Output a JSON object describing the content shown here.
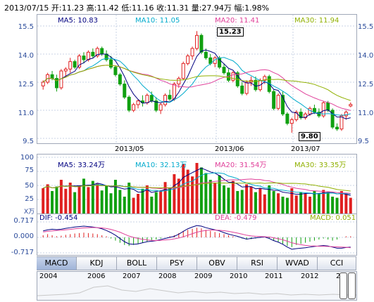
{
  "header": {
    "date": "2013/07/15",
    "open": "开:11.23",
    "high": "高:11.42",
    "low": "低:11.16",
    "close": "收:11.31",
    "volume": "量:27.94万",
    "change": "幅:1.98%"
  },
  "price_panel": {
    "ma5": "MA5: 10.83",
    "ma10": "MA10: 11.05",
    "ma20": "MA20: 11.41",
    "ma30": "MA30: 11.94",
    "y_ticks": [
      "15.5",
      "14.0",
      "12.5",
      "11.0",
      "9.5"
    ],
    "x_ticks": [
      "2013/05",
      "2013/06",
      "2013/07"
    ],
    "high_label": "15.23",
    "low_label": "9.80",
    "colors": {
      "ma5": "#000080",
      "ma10": "#00aacc",
      "ma20": "#e0409a",
      "ma30": "#90b000",
      "up": "#e02020",
      "down": "#10a010"
    }
  },
  "volume_panel": {
    "ma5": "MA5: 33.24万",
    "ma10": "MA10: 32.13万",
    "ma20": "MA20: 31.54万",
    "ma30": "MA30: 33.35万",
    "y_ticks": [
      "100",
      "75",
      "50",
      "25"
    ],
    "unit": "X万"
  },
  "macd_panel": {
    "dif": "DIF: -0.454",
    "dea": "DEA: -0.479",
    "macd": "MACD: 0.051",
    "y_ticks": [
      "0.717",
      "0.000",
      "-0.717"
    ]
  },
  "tabs": [
    "MACD",
    "KDJ",
    "BOLL",
    "PSY",
    "OBV",
    "RSI",
    "WVAD",
    "CCI"
  ],
  "active_tab": "MACD",
  "timeline_years": [
    "2004",
    "2006",
    "2007",
    "2008",
    "2009",
    "2010",
    "2011",
    "2012",
    "2"
  ],
  "chart_data": {
    "type": "candlestick",
    "y_range": [
      9.5,
      15.5
    ],
    "candles": [
      [
        12.3,
        12.6,
        12.1,
        12.5
      ],
      [
        12.5,
        13.0,
        12.4,
        12.9
      ],
      [
        12.9,
        13.1,
        12.6,
        12.7
      ],
      [
        12.7,
        12.9,
        12.0,
        12.2
      ],
      [
        12.2,
        13.2,
        12.1,
        13.1
      ],
      [
        13.1,
        13.3,
        12.8,
        13.2
      ],
      [
        13.2,
        13.8,
        13.0,
        13.6
      ],
      [
        13.6,
        13.7,
        13.2,
        13.3
      ],
      [
        13.3,
        14.0,
        13.2,
        13.9
      ],
      [
        13.9,
        14.1,
        13.5,
        13.7
      ],
      [
        13.7,
        14.2,
        13.6,
        14.1
      ],
      [
        14.1,
        14.3,
        13.8,
        13.9
      ],
      [
        13.9,
        14.4,
        13.8,
        14.3
      ],
      [
        14.3,
        14.4,
        13.9,
        14.0
      ],
      [
        14.0,
        14.2,
        13.6,
        13.7
      ],
      [
        13.7,
        13.9,
        13.2,
        13.3
      ],
      [
        13.3,
        13.4,
        12.8,
        12.9
      ],
      [
        12.9,
        13.0,
        12.3,
        12.4
      ],
      [
        12.4,
        12.6,
        11.6,
        11.7
      ],
      [
        11.7,
        11.8,
        10.9,
        11.0
      ],
      [
        11.0,
        11.4,
        10.9,
        11.3
      ],
      [
        11.3,
        11.6,
        11.1,
        11.5
      ],
      [
        11.5,
        11.8,
        11.2,
        11.4
      ],
      [
        11.4,
        11.9,
        11.3,
        11.8
      ],
      [
        11.8,
        12.0,
        11.4,
        11.5
      ],
      [
        11.5,
        11.7,
        10.9,
        11.0
      ],
      [
        11.0,
        11.4,
        10.8,
        11.3
      ],
      [
        11.3,
        11.9,
        11.2,
        11.8
      ],
      [
        11.8,
        12.1,
        11.5,
        11.6
      ],
      [
        11.6,
        12.5,
        11.5,
        12.4
      ],
      [
        12.4,
        12.8,
        12.2,
        12.7
      ],
      [
        12.7,
        13.6,
        12.6,
        13.5
      ],
      [
        13.5,
        14.0,
        13.4,
        13.9
      ],
      [
        13.9,
        14.4,
        13.7,
        14.3
      ],
      [
        14.3,
        15.23,
        14.2,
        15.0
      ],
      [
        15.0,
        15.1,
        14.0,
        14.1
      ],
      [
        14.1,
        14.3,
        13.7,
        13.8
      ],
      [
        13.8,
        14.0,
        13.4,
        13.5
      ],
      [
        13.5,
        13.9,
        13.3,
        13.8
      ],
      [
        13.8,
        13.9,
        13.2,
        13.3
      ],
      [
        13.3,
        13.5,
        12.9,
        13.0
      ],
      [
        13.0,
        13.2,
        12.5,
        12.6
      ],
      [
        12.6,
        13.1,
        12.5,
        13.0
      ],
      [
        13.0,
        13.1,
        12.2,
        12.3
      ],
      [
        12.3,
        12.5,
        11.8,
        11.9
      ],
      [
        11.9,
        12.6,
        11.8,
        12.5
      ],
      [
        12.5,
        12.8,
        12.3,
        12.6
      ],
      [
        12.6,
        12.8,
        12.0,
        12.1
      ],
      [
        12.1,
        12.7,
        12.0,
        12.6
      ],
      [
        12.6,
        12.9,
        12.4,
        12.8
      ],
      [
        12.8,
        12.9,
        11.9,
        12.0
      ],
      [
        12.0,
        12.1,
        11.0,
        11.1
      ],
      [
        11.1,
        11.9,
        11.0,
        11.8
      ],
      [
        11.8,
        12.0,
        10.7,
        10.8
      ],
      [
        10.8,
        10.9,
        10.2,
        10.3
      ],
      [
        10.3,
        10.6,
        9.8,
        10.5
      ],
      [
        10.5,
        11.0,
        10.4,
        10.9
      ],
      [
        10.9,
        11.1,
        10.5,
        10.6
      ],
      [
        10.6,
        10.9,
        10.5,
        10.8
      ],
      [
        10.8,
        11.2,
        10.7,
        11.1
      ],
      [
        11.1,
        11.3,
        10.8,
        10.9
      ],
      [
        10.9,
        11.1,
        10.6,
        10.7
      ],
      [
        10.7,
        11.5,
        10.6,
        11.4
      ],
      [
        11.4,
        11.5,
        10.9,
        11.0
      ],
      [
        11.0,
        11.1,
        10.0,
        10.1
      ],
      [
        10.1,
        10.3,
        9.9,
        10.0
      ],
      [
        10.0,
        10.8,
        9.9,
        10.7
      ],
      [
        10.7,
        11.0,
        10.5,
        10.9
      ],
      [
        11.23,
        11.42,
        11.16,
        11.31
      ]
    ],
    "volume": [
      45,
      52,
      40,
      48,
      60,
      44,
      55,
      38,
      50,
      62,
      47,
      58,
      53,
      41,
      49,
      36,
      60,
      42,
      30,
      55,
      28,
      35,
      44,
      50,
      30,
      38,
      40,
      56,
      45,
      70,
      62,
      88,
      78,
      66,
      90,
      82,
      72,
      60,
      55,
      68,
      50,
      46,
      58,
      40,
      42,
      52,
      48,
      38,
      45,
      34,
      50,
      40,
      36,
      30,
      28,
      45,
      32,
      38,
      35,
      30,
      40,
      36,
      42,
      38,
      30,
      28,
      40,
      35,
      28
    ],
    "macd_hist": [
      0.1,
      0.15,
      0.1,
      0.05,
      0.08,
      0.12,
      0.15,
      0.18,
      0.2,
      0.22,
      0.2,
      0.18,
      0.15,
      0.1,
      0.05,
      -0.05,
      -0.15,
      -0.25,
      -0.35,
      -0.4,
      -0.35,
      -0.3,
      -0.25,
      -0.2,
      -0.15,
      -0.1,
      -0.05,
      0.0,
      0.05,
      0.1,
      0.2,
      0.3,
      0.35,
      0.4,
      0.45,
      0.42,
      0.35,
      0.3,
      0.25,
      0.2,
      0.15,
      0.1,
      0.05,
      0.0,
      -0.05,
      -0.1,
      -0.08,
      -0.05,
      -0.02,
      0.0,
      -0.05,
      -0.15,
      -0.2,
      -0.3,
      -0.4,
      -0.45,
      -0.35,
      -0.3,
      -0.25,
      -0.2,
      -0.15,
      -0.1,
      -0.05,
      -0.1,
      -0.15,
      -0.1,
      0.0,
      0.05,
      0.05
    ],
    "dif_line": [
      0.3,
      0.35,
      0.38,
      0.36,
      0.38,
      0.42,
      0.45,
      0.48,
      0.5,
      0.52,
      0.5,
      0.48,
      0.45,
      0.4,
      0.32,
      0.22,
      0.1,
      -0.05,
      -0.2,
      -0.3,
      -0.32,
      -0.3,
      -0.25,
      -0.2,
      -0.18,
      -0.15,
      -0.1,
      -0.05,
      0.0,
      0.05,
      0.15,
      0.28,
      0.4,
      0.48,
      0.55,
      0.52,
      0.45,
      0.4,
      0.35,
      0.3,
      0.22,
      0.15,
      0.1,
      0.05,
      -0.02,
      -0.08,
      -0.05,
      -0.02,
      0.0,
      0.02,
      -0.05,
      -0.15,
      -0.22,
      -0.32,
      -0.45,
      -0.55,
      -0.52,
      -0.5,
      -0.48,
      -0.45,
      -0.42,
      -0.4,
      -0.38,
      -0.4,
      -0.45,
      -0.5,
      -0.5,
      -0.47,
      -0.454
    ],
    "dea_line": [
      0.25,
      0.28,
      0.3,
      0.32,
      0.33,
      0.35,
      0.37,
      0.4,
      0.42,
      0.44,
      0.45,
      0.46,
      0.45,
      0.44,
      0.41,
      0.37,
      0.31,
      0.24,
      0.15,
      0.06,
      0.0,
      -0.05,
      -0.09,
      -0.12,
      -0.14,
      -0.15,
      -0.14,
      -0.12,
      -0.1,
      -0.07,
      -0.03,
      0.03,
      0.1,
      0.17,
      0.24,
      0.29,
      0.32,
      0.34,
      0.34,
      0.33,
      0.31,
      0.28,
      0.24,
      0.2,
      0.15,
      0.1,
      0.07,
      0.05,
      0.04,
      0.03,
      0.02,
      -0.02,
      -0.06,
      -0.11,
      -0.18,
      -0.25,
      -0.3,
      -0.34,
      -0.37,
      -0.39,
      -0.4,
      -0.41,
      -0.41,
      -0.42,
      -0.43,
      -0.44,
      -0.45,
      -0.46,
      -0.479
    ]
  }
}
